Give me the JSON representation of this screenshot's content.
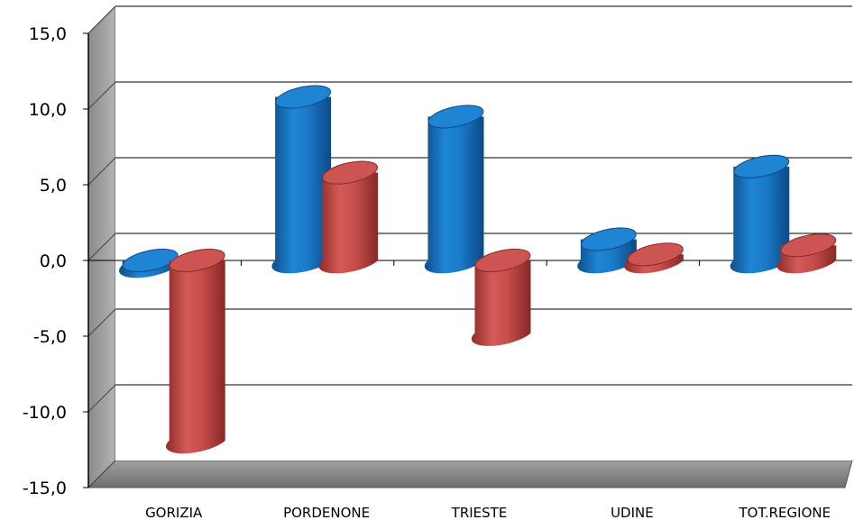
{
  "chart_data": {
    "type": "bar",
    "three_d": true,
    "categories": [
      "GORIZIA",
      "PORDENONE",
      "TRIESTE",
      "UDINE",
      "TOT.REGIONE"
    ],
    "series": [
      {
        "values": [
          -0.3,
          10.8,
          9.5,
          1.4,
          6.2
        ],
        "color": "#1a75c4"
      },
      {
        "values": [
          -11.9,
          5.8,
          -4.8,
          0.4,
          1.0
        ],
        "color": "#c0504d"
      }
    ],
    "y_ticks": [
      "15,0",
      "10,0",
      "5,0",
      "0,0",
      "-5,0",
      "-10,0",
      "-15,0"
    ],
    "ylim": [
      -15,
      15
    ],
    "grid": true,
    "legend": "none"
  }
}
